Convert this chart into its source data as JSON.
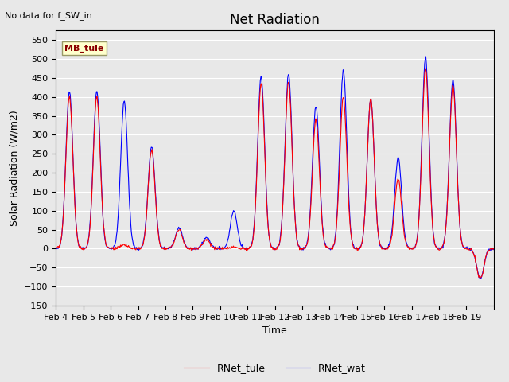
{
  "title": "Net Radiation",
  "xlabel": "Time",
  "ylabel": "Solar Radiation (W/m2)",
  "note": "No data for f_SW_in",
  "ylim": [
    -150,
    575
  ],
  "yticks": [
    -150,
    -100,
    -50,
    0,
    50,
    100,
    150,
    200,
    250,
    300,
    350,
    400,
    450,
    500,
    550
  ],
  "xtick_positions": [
    0,
    1,
    2,
    3,
    4,
    5,
    6,
    7,
    8,
    9,
    10,
    11,
    12,
    13,
    14,
    15,
    16
  ],
  "xtick_labels": [
    "Feb 4",
    "Feb 5",
    "Feb 6",
    "Feb 7",
    "Feb 8",
    "Feb 9",
    "Feb 10",
    "Feb 11",
    "Feb 12",
    "Feb 13",
    "Feb 14",
    "Feb 15",
    "Feb 16",
    "Feb 17",
    "Feb 18",
    "Feb 19",
    ""
  ],
  "legend_labels": [
    "RNet_tule",
    "RNet_wat"
  ],
  "color_tule": "red",
  "color_wat": "blue",
  "bg_color": "#e8e8e8",
  "legend_box_color": "#ffffcc",
  "legend_box_edge": "#999966",
  "mb_tule_label": "MB_tule",
  "note_fontsize": 8,
  "title_fontsize": 12,
  "label_fontsize": 9,
  "tick_fontsize": 8,
  "legend_fontsize": 9,
  "n_days": 16,
  "pts_per_day": 48,
  "night_base": -75,
  "seed": 0,
  "day_peaks_tule": [
    400,
    400,
    10,
    260,
    50,
    25,
    5,
    435,
    440,
    340,
    400,
    395,
    185,
    475,
    430,
    -80
  ],
  "day_peaks_wat": [
    415,
    415,
    390,
    270,
    55,
    30,
    100,
    455,
    460,
    375,
    470,
    395,
    240,
    505,
    445,
    -80
  ]
}
